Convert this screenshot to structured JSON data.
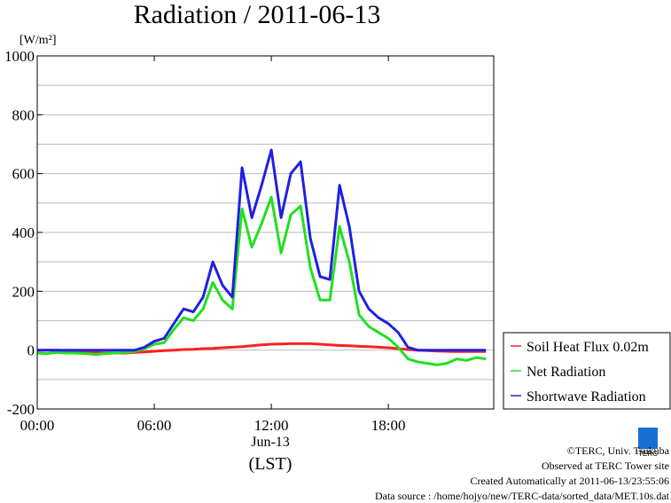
{
  "chart_data": {
    "type": "line",
    "title": "Radiation / 2011-06-13",
    "y_label": "[W/m²]",
    "x_label": "(LST)",
    "date_label": "Jun-13",
    "x": [
      0,
      0.5,
      1,
      1.5,
      2,
      2.5,
      3,
      3.5,
      4,
      4.5,
      5,
      5.5,
      6,
      6.5,
      7,
      7.5,
      8,
      8.5,
      9,
      9.5,
      10,
      10.5,
      11,
      11.5,
      12,
      12.5,
      13,
      13.5,
      14,
      14.5,
      15,
      15.5,
      16,
      16.5,
      17,
      17.5,
      18,
      18.5,
      19,
      19.5,
      20,
      20.5,
      21,
      21.5,
      22,
      22.5,
      23
    ],
    "xlim": [
      0,
      23.4
    ],
    "xticks": [
      {
        "value": 0,
        "label": "00:00"
      },
      {
        "value": 6,
        "label": "06:00"
      },
      {
        "value": 12,
        "label": "12:00"
      },
      {
        "value": 18,
        "label": "18:00"
      }
    ],
    "ylim": [
      -200,
      1000
    ],
    "yticks": [
      -200,
      0,
      200,
      400,
      600,
      800,
      1000
    ],
    "yminor": [
      -100,
      100,
      300,
      500,
      700,
      900
    ],
    "grid": true,
    "legend": "lower-right-outside",
    "series": [
      {
        "name": "Soil Heat Flux 0.02m",
        "color": "#ff2020",
        "values": [
          0,
          0,
          0,
          -2,
          -3,
          -5,
          -8,
          -10,
          -10,
          -10,
          -8,
          -6,
          -4,
          -2,
          0,
          2,
          3,
          5,
          6,
          8,
          10,
          12,
          15,
          18,
          20,
          21,
          22,
          22,
          22,
          20,
          18,
          16,
          15,
          13,
          12,
          10,
          8,
          5,
          2,
          0,
          -2,
          -3,
          -4,
          -5,
          -5,
          -5,
          -5
        ]
      },
      {
        "name": "Net Radiation",
        "color": "#20e020",
        "values": [
          -10,
          -12,
          -8,
          -10,
          -10,
          -12,
          -15,
          -12,
          -10,
          -8,
          -5,
          5,
          20,
          25,
          70,
          110,
          100,
          140,
          230,
          170,
          140,
          480,
          350,
          430,
          520,
          330,
          460,
          490,
          280,
          170,
          170,
          420,
          300,
          120,
          80,
          60,
          40,
          10,
          -30,
          -40,
          -45,
          -50,
          -45,
          -30,
          -35,
          -25,
          -30
        ]
      },
      {
        "name": "Shortwave Radiation",
        "color": "#2020e0",
        "values": [
          0,
          0,
          0,
          0,
          0,
          0,
          0,
          0,
          0,
          0,
          0,
          10,
          30,
          40,
          90,
          140,
          130,
          180,
          300,
          220,
          180,
          620,
          450,
          560,
          680,
          450,
          600,
          640,
          380,
          250,
          240,
          560,
          420,
          200,
          140,
          110,
          90,
          60,
          10,
          0,
          0,
          0,
          0,
          0,
          0,
          0,
          0
        ]
      }
    ],
    "footer": [
      "©TERC, Univ. Tsukuba",
      "Observed at TERC Tower site",
      "Created Automatically at 2011-06-13/23:55:06",
      "Data source : /home/hojyo/new/TERC-data/sorted_data/MET.10s.dat"
    ],
    "logo": "TERC"
  }
}
